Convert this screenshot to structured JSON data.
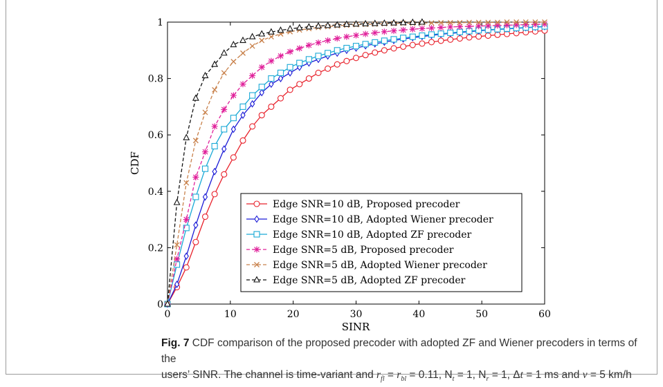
{
  "chart_data": {
    "type": "line",
    "xlabel": "SINR",
    "ylabel": "CDF",
    "xlim": [
      0,
      60
    ],
    "ylim": [
      0,
      1
    ],
    "x_ticks": [
      "0",
      "10",
      "20",
      "30",
      "40",
      "50",
      "60"
    ],
    "y_ticks": [
      "0",
      "0.2",
      "0.4",
      "0.6",
      "0.8",
      "1"
    ],
    "legend_position": "bottom-center inside axes",
    "grid": false,
    "series": [
      {
        "name": "Edge SNR=10 dB, Proposed precoder",
        "color": "#e8202a",
        "dash": "solid",
        "marker": "circle",
        "x": [
          0,
          1.5,
          3,
          4.5,
          6,
          7.5,
          9,
          10.5,
          12,
          13.5,
          15,
          16.5,
          18,
          19.5,
          21,
          22.5,
          24,
          25.5,
          27,
          28.5,
          30,
          31.5,
          33,
          34.5,
          36,
          37.5,
          39,
          40.5,
          42,
          43.5,
          45,
          46.5,
          48,
          49.5,
          51,
          52.5,
          54,
          55.5,
          57,
          58.5,
          60
        ],
        "y": [
          0.0,
          0.06,
          0.13,
          0.22,
          0.31,
          0.39,
          0.46,
          0.52,
          0.58,
          0.63,
          0.67,
          0.7,
          0.73,
          0.76,
          0.78,
          0.8,
          0.82,
          0.835,
          0.85,
          0.862,
          0.873,
          0.883,
          0.892,
          0.9,
          0.907,
          0.913,
          0.919,
          0.924,
          0.929,
          0.934,
          0.938,
          0.942,
          0.946,
          0.949,
          0.952,
          0.955,
          0.958,
          0.961,
          0.964,
          0.967,
          0.97
        ]
      },
      {
        "name": "Edge SNR=10 dB, Adopted Wiener precoder",
        "color": "#1a1ad6",
        "dash": "solid",
        "marker": "diamond",
        "x": [
          0,
          1.5,
          3,
          4.5,
          6,
          7.5,
          9,
          10.5,
          12,
          13.5,
          15,
          16.5,
          18,
          19.5,
          21,
          22.5,
          24,
          25.5,
          27,
          28.5,
          30,
          31.5,
          33,
          34.5,
          36,
          37.5,
          39,
          40.5,
          42,
          43.5,
          45,
          46.5,
          48,
          49.5,
          51,
          52.5,
          54,
          55.5,
          57,
          58.5,
          60
        ],
        "y": [
          0.0,
          0.07,
          0.17,
          0.28,
          0.38,
          0.47,
          0.55,
          0.62,
          0.67,
          0.71,
          0.75,
          0.78,
          0.8,
          0.82,
          0.84,
          0.855,
          0.868,
          0.88,
          0.89,
          0.9,
          0.908,
          0.916,
          0.923,
          0.929,
          0.935,
          0.94,
          0.945,
          0.949,
          0.953,
          0.957,
          0.96,
          0.963,
          0.966,
          0.969,
          0.972,
          0.974,
          0.976,
          0.978,
          0.98,
          0.982,
          0.984
        ]
      },
      {
        "name": "Edge SNR=10 dB, Adopted ZF precoder",
        "color": "#19a9d6",
        "dash": "solid",
        "marker": "square",
        "x": [
          0,
          1.5,
          3,
          4.5,
          6,
          7.5,
          9,
          10.5,
          12,
          13.5,
          15,
          16.5,
          18,
          19.5,
          21,
          22.5,
          24,
          25.5,
          27,
          28.5,
          30,
          31.5,
          33,
          34.5,
          36,
          37.5,
          39,
          40.5,
          42,
          43.5,
          45,
          46.5,
          48,
          49.5,
          51,
          52.5,
          54,
          55.5,
          57,
          58.5,
          60
        ],
        "y": [
          0.0,
          0.14,
          0.27,
          0.38,
          0.48,
          0.56,
          0.62,
          0.66,
          0.7,
          0.74,
          0.77,
          0.8,
          0.82,
          0.84,
          0.855,
          0.868,
          0.88,
          0.89,
          0.9,
          0.908,
          0.915,
          0.922,
          0.928,
          0.934,
          0.939,
          0.944,
          0.948,
          0.952,
          0.956,
          0.959,
          0.962,
          0.965,
          0.968,
          0.971,
          0.973,
          0.975,
          0.977,
          0.979,
          0.981,
          0.983,
          0.985
        ]
      },
      {
        "name": "Edge SNR=5 dB, Proposed precoder",
        "color": "#e0209a",
        "dash": "dashed",
        "marker": "asterisk",
        "x": [
          0,
          1.5,
          3,
          4.5,
          6,
          7.5,
          9,
          10.5,
          12,
          13.5,
          15,
          16.5,
          18,
          19.5,
          21,
          22.5,
          24,
          25.5,
          27,
          28.5,
          30,
          31.5,
          33,
          34.5,
          36,
          37.5,
          39,
          40.5,
          42,
          43.5,
          45,
          46.5,
          48,
          49.5,
          51,
          52.5,
          54,
          55.5,
          57,
          58.5,
          60
        ],
        "y": [
          0.0,
          0.16,
          0.3,
          0.45,
          0.54,
          0.63,
          0.69,
          0.74,
          0.78,
          0.81,
          0.84,
          0.862,
          0.88,
          0.895,
          0.907,
          0.918,
          0.927,
          0.935,
          0.942,
          0.948,
          0.953,
          0.958,
          0.962,
          0.966,
          0.969,
          0.972,
          0.975,
          0.977,
          0.979,
          0.981,
          0.983,
          0.984,
          0.985,
          0.986,
          0.987,
          0.988,
          0.989,
          0.99,
          0.991,
          0.992,
          0.993
        ]
      },
      {
        "name": "Edge SNR=5 dB, Adopted Wiener precoder",
        "color": "#c8804a",
        "dash": "dashed",
        "marker": "x",
        "x": [
          0,
          1.5,
          3,
          4.5,
          6,
          7.5,
          9,
          10.5,
          12,
          13.5,
          15,
          16.5,
          18,
          19.5,
          21,
          22.5,
          24,
          25.5,
          27,
          28.5,
          30,
          31.5,
          33,
          34.5,
          36,
          37.5,
          39,
          40.5,
          42,
          43.5,
          45,
          46.5,
          48,
          49.5,
          51,
          52.5,
          54,
          55.5,
          57,
          58.5,
          60
        ],
        "y": [
          0.0,
          0.21,
          0.43,
          0.58,
          0.68,
          0.76,
          0.82,
          0.86,
          0.89,
          0.915,
          0.935,
          0.948,
          0.958,
          0.966,
          0.972,
          0.977,
          0.981,
          0.984,
          0.987,
          0.989,
          0.991,
          0.992,
          0.993,
          0.994,
          0.995,
          0.996,
          0.996,
          0.997,
          0.997,
          0.998,
          0.998,
          0.998,
          0.999,
          0.999,
          0.999,
          0.999,
          1.0,
          1.0,
          1.0,
          1.0,
          1.0
        ]
      },
      {
        "name": "Edge SNR=5 dB, Adopted ZF precoder",
        "color": "#111111",
        "dash": "dashed",
        "marker": "triangle",
        "x": [
          0,
          1.5,
          3,
          4.5,
          6,
          7.5,
          9,
          10.5,
          12,
          13.5,
          15,
          16.5,
          18,
          19.5,
          21,
          22.5,
          24,
          25.5,
          27,
          28.5,
          30,
          31.5,
          33,
          34.5,
          36,
          37.5,
          39,
          40.5
        ],
        "y": [
          0.0,
          0.36,
          0.59,
          0.73,
          0.81,
          0.85,
          0.89,
          0.92,
          0.935,
          0.948,
          0.958,
          0.965,
          0.971,
          0.976,
          0.98,
          0.983,
          0.986,
          0.988,
          0.99,
          0.992,
          0.993,
          0.994,
          0.995,
          0.996,
          0.997,
          0.998,
          0.999,
          1.0
        ]
      }
    ]
  },
  "caption": {
    "fig_label": "Fig. 7",
    "line1": "CDF comparison of the proposed precoder with adopted ZF and Wiener precoders in terms of the",
    "line2_pre": "users’ SINR. The channel is time-variant and ",
    "line2_math": "r_fl = r_bl = 0.11, N_t = 1, N_r = 1, Δt = 1 ms and v = 5 km/h"
  }
}
